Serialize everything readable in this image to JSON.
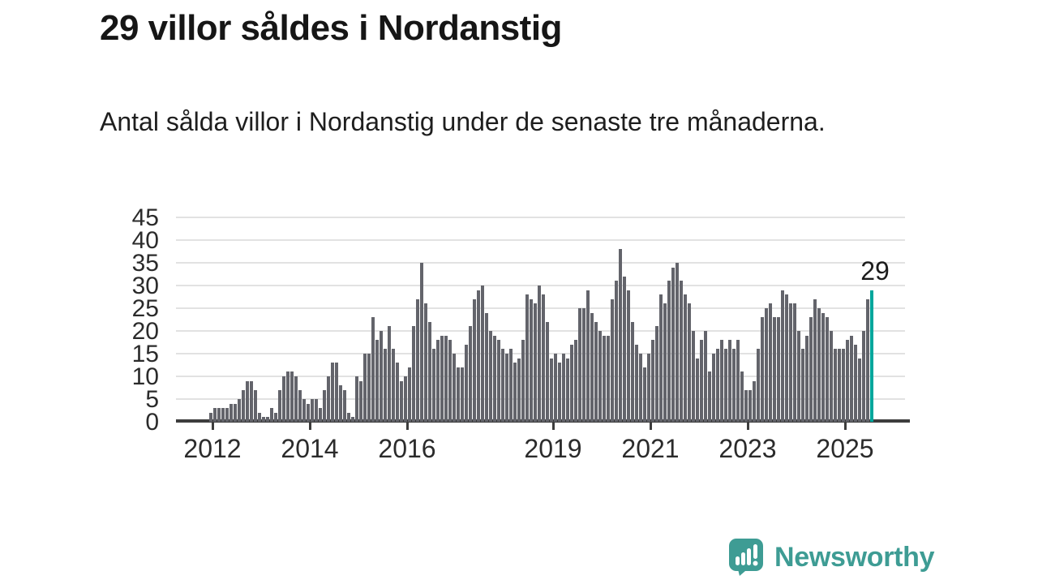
{
  "header": {
    "title": "29 villor såldes i Nordanstig",
    "subtitle": "Antal sålda villor i Nordanstig under de senaste tre månaderna."
  },
  "chart_data": {
    "type": "bar",
    "title": "",
    "xlabel": "",
    "ylabel": "",
    "x_start": "2012-01",
    "x_interval": "month",
    "x_end": "2025-08",
    "values": [
      2,
      3,
      3,
      3,
      3,
      4,
      4,
      5,
      7,
      9,
      9,
      7,
      2,
      1,
      1,
      3,
      2,
      7,
      10,
      11,
      11,
      10,
      7,
      5,
      4,
      5,
      5,
      3,
      7,
      10,
      13,
      13,
      8,
      7,
      2,
      1,
      10,
      9,
      15,
      15,
      23,
      18,
      20,
      16,
      21,
      16,
      13,
      9,
      10,
      12,
      21,
      27,
      35,
      26,
      22,
      16,
      18,
      19,
      19,
      18,
      15,
      12,
      12,
      17,
      21,
      27,
      29,
      30,
      24,
      20,
      19,
      18,
      16,
      15,
      16,
      13,
      14,
      18,
      28,
      27,
      26,
      30,
      28,
      22,
      14,
      15,
      13,
      15,
      14,
      17,
      18,
      25,
      25,
      29,
      24,
      22,
      20,
      19,
      19,
      27,
      31,
      38,
      32,
      29,
      22,
      17,
      15,
      12,
      15,
      18,
      21,
      28,
      26,
      31,
      34,
      35,
      31,
      28,
      26,
      20,
      14,
      18,
      20,
      11,
      15,
      16,
      18,
      16,
      18,
      16,
      18,
      11,
      7,
      7,
      9,
      16,
      23,
      25,
      26,
      23,
      23,
      29,
      28,
      26,
      26,
      20,
      16,
      19,
      23,
      27,
      25,
      24,
      23,
      20,
      16,
      16,
      16,
      18,
      19,
      17,
      14,
      20,
      27,
      29
    ],
    "highlight_last_bar": true,
    "last_value_label": "29",
    "yticks": [
      0,
      5,
      10,
      15,
      20,
      25,
      30,
      35,
      40,
      45
    ],
    "ylim": [
      0,
      45
    ],
    "xticks": [
      2012,
      2014,
      2016,
      2019,
      2021,
      2023,
      2025
    ],
    "grid": "horizontal",
    "legend": null,
    "colors": {
      "bar": "#63646b",
      "highlight": "#00a69c",
      "grid": "#e2e2e2",
      "axis": "#3d3d3d"
    }
  },
  "footer": {
    "brand": "Newsworthy",
    "logo_icon": "newsworthy-speech-bubble-chart-icon",
    "brand_color": "#3e9c94"
  }
}
